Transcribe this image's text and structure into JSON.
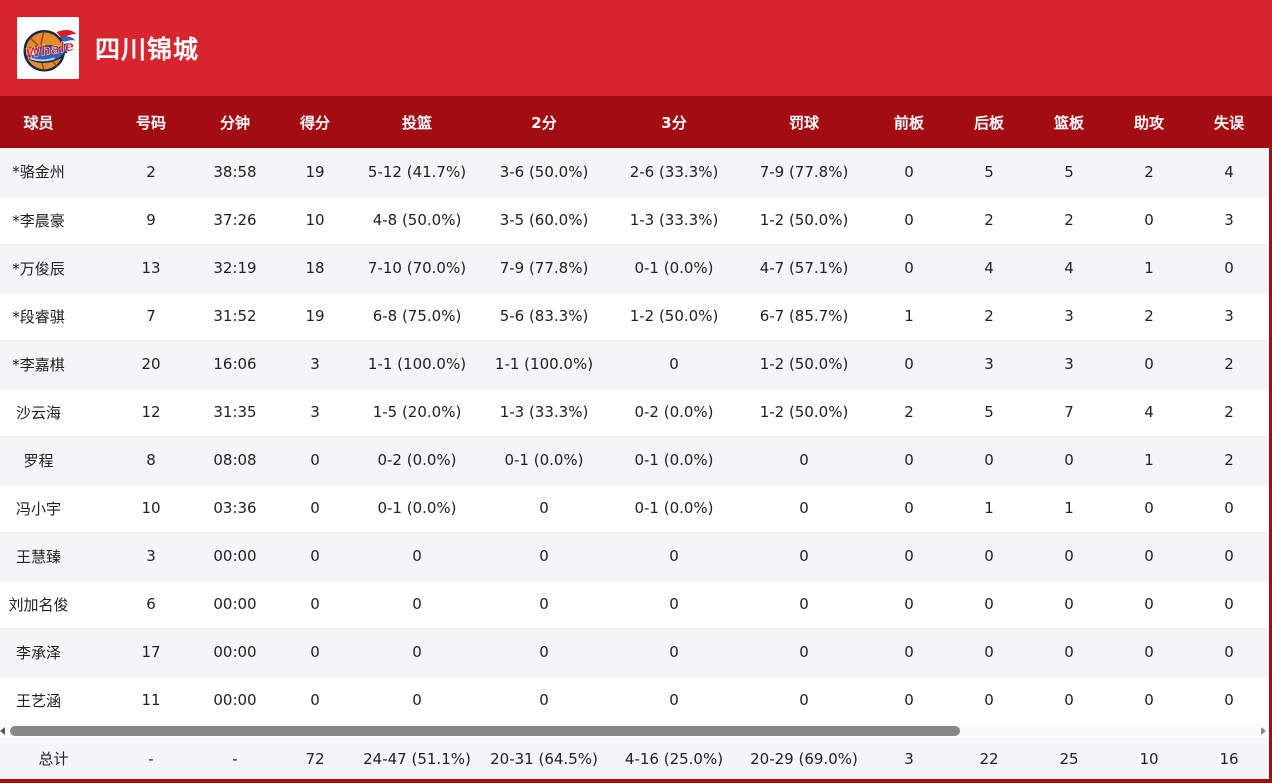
{
  "header": {
    "team_name": "四川锦城",
    "logo_text": "Whale"
  },
  "table": {
    "columns": [
      "球员",
      "号码",
      "分钟",
      "得分",
      "投篮",
      "2分",
      "3分",
      "罚球",
      "前板",
      "后板",
      "篮板",
      "助攻",
      "失误"
    ],
    "rows": [
      [
        "*骆金州",
        "2",
        "38:58",
        "19",
        "5-12 (41.7%)",
        "3-6 (50.0%)",
        "2-6 (33.3%)",
        "7-9 (77.8%)",
        "0",
        "5",
        "5",
        "2",
        "4"
      ],
      [
        "*李晨豪",
        "9",
        "37:26",
        "10",
        "4-8 (50.0%)",
        "3-5 (60.0%)",
        "1-3 (33.3%)",
        "1-2 (50.0%)",
        "0",
        "2",
        "2",
        "0",
        "3"
      ],
      [
        "*万俊辰",
        "13",
        "32:19",
        "18",
        "7-10 (70.0%)",
        "7-9 (77.8%)",
        "0-1 (0.0%)",
        "4-7 (57.1%)",
        "0",
        "4",
        "4",
        "1",
        "0"
      ],
      [
        "*段睿骐",
        "7",
        "31:52",
        "19",
        "6-8 (75.0%)",
        "5-6 (83.3%)",
        "1-2 (50.0%)",
        "6-7 (85.7%)",
        "1",
        "2",
        "3",
        "2",
        "3"
      ],
      [
        "*李嘉棋",
        "20",
        "16:06",
        "3",
        "1-1 (100.0%)",
        "1-1 (100.0%)",
        "0",
        "1-2 (50.0%)",
        "0",
        "3",
        "3",
        "0",
        "2"
      ],
      [
        "沙云海",
        "12",
        "31:35",
        "3",
        "1-5 (20.0%)",
        "1-3 (33.3%)",
        "0-2 (0.0%)",
        "1-2 (50.0%)",
        "2",
        "5",
        "7",
        "4",
        "2"
      ],
      [
        "罗程",
        "8",
        "08:08",
        "0",
        "0-2 (0.0%)",
        "0-1 (0.0%)",
        "0-1 (0.0%)",
        "0",
        "0",
        "0",
        "0",
        "1",
        "2"
      ],
      [
        "冯小宇",
        "10",
        "03:36",
        "0",
        "0-1 (0.0%)",
        "0",
        "0-1 (0.0%)",
        "0",
        "0",
        "1",
        "1",
        "0",
        "0"
      ],
      [
        "王慧臻",
        "3",
        "00:00",
        "0",
        "0",
        "0",
        "0",
        "0",
        "0",
        "0",
        "0",
        "0",
        "0"
      ],
      [
        "刘加名俊",
        "6",
        "00:00",
        "0",
        "0",
        "0",
        "0",
        "0",
        "0",
        "0",
        "0",
        "0",
        "0"
      ],
      [
        "李承泽",
        "17",
        "00:00",
        "0",
        "0",
        "0",
        "0",
        "0",
        "0",
        "0",
        "0",
        "0",
        "0"
      ],
      [
        "王艺涵",
        "11",
        "00:00",
        "0",
        "0",
        "0",
        "0",
        "0",
        "0",
        "0",
        "0",
        "0",
        "0"
      ]
    ],
    "total_row": [
      "总计",
      "-",
      "-",
      "72",
      "24-47 (51.1%)",
      "20-31 (64.5%)",
      "4-16 (25.0%)",
      "20-29 (69.0%)",
      "3",
      "22",
      "25",
      "10",
      "16"
    ]
  },
  "icons": {
    "team_logo": "whale-basketball-logo",
    "scroll_left": "scroll-left-arrow",
    "scroll_right": "scroll-right-arrow"
  },
  "colors": {
    "topbar_red": "#d7242e",
    "table_header_red": "#a30c11",
    "row_alt_gray": "#f5f5f8",
    "total_row_gray": "#f4f5f8",
    "scroll_thumb_gray": "#878787",
    "logo_orange": "#e78b2b",
    "logo_blue": "#2e63b5",
    "logo_red": "#d61d23"
  }
}
